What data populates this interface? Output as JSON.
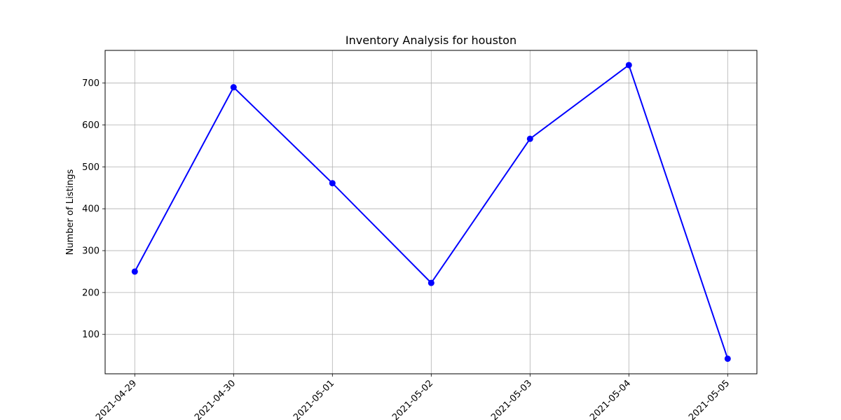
{
  "chart_data": {
    "type": "line",
    "title": "Inventory Analysis for houston",
    "xlabel": "",
    "ylabel": "Number of Listings",
    "x": [
      "2021-04-29",
      "2021-04-30",
      "2021-05-01",
      "2021-05-02",
      "2021-05-03",
      "2021-05-04",
      "2021-05-05"
    ],
    "series": [
      {
        "values": [
          250,
          690,
          461,
          223,
          567,
          743,
          42
        ],
        "color": "#0000ff",
        "marker": "circle"
      }
    ],
    "yticks": [
      100,
      200,
      300,
      400,
      500,
      600,
      700
    ],
    "ylim": [
      6,
      778
    ],
    "grid": true,
    "legend": "none"
  }
}
